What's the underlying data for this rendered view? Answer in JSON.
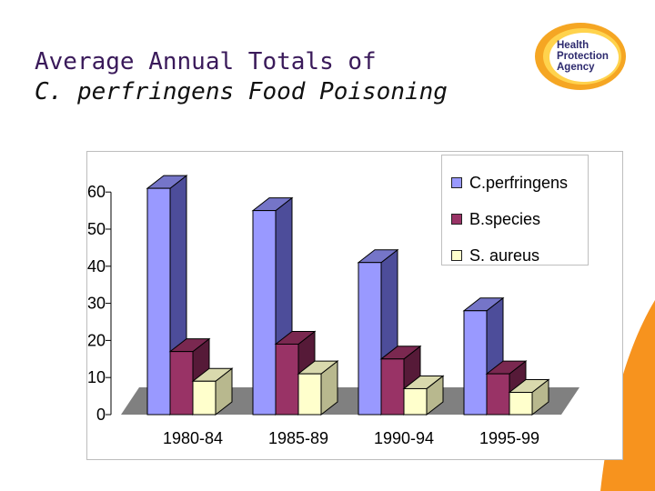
{
  "slide": {
    "title_line1": "Average Annual Totals of",
    "title_line2": "C. perfringens Food Poisoning"
  },
  "logo": {
    "lines": [
      "Health",
      "Protection",
      "Agency"
    ],
    "colors": {
      "ring": "#f5a623",
      "ring_inner": "#ffd34d",
      "text": "#2d2a6e"
    }
  },
  "colors": {
    "corner_accent": "#f7931e"
  },
  "chart_data": {
    "type": "bar",
    "title": "",
    "xlabel": "",
    "ylabel": "",
    "categories": [
      "1980-84",
      "1985-89",
      "1990-94",
      "1995-99"
    ],
    "series": [
      {
        "name": "C.perfringens",
        "values": [
          61,
          55,
          41,
          28
        ],
        "color": "#9999ff",
        "side": "#4d4d9a",
        "top": "#7575c8"
      },
      {
        "name": "B.species",
        "values": [
          17,
          19,
          15,
          11
        ],
        "color": "#993366",
        "side": "#561a38",
        "top": "#7a2850"
      },
      {
        "name": "S. aureus",
        "values": [
          9,
          11,
          7,
          6
        ],
        "color": "#ffffcc",
        "side": "#b8b88e",
        "top": "#d9d9ad"
      }
    ],
    "ylim": [
      0,
      60
    ],
    "yticks": [
      0,
      10,
      20,
      30,
      40,
      50,
      60
    ],
    "grid": false,
    "legend": "top-right",
    "three_d": true,
    "floor_color": "#808080"
  }
}
